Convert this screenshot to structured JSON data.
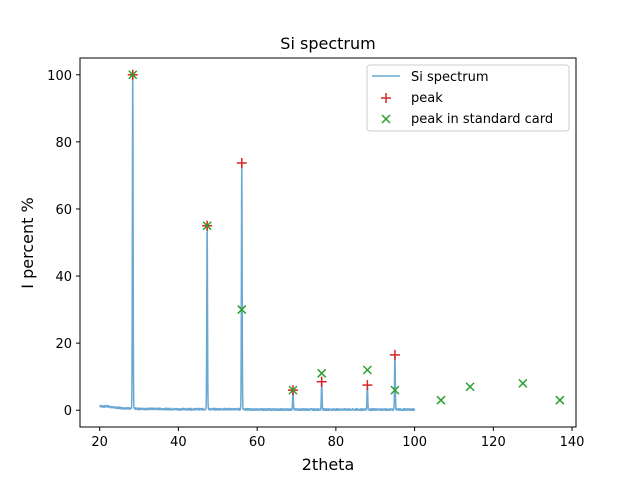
{
  "chart_data": {
    "type": "line",
    "title": "Si spectrum",
    "xlabel": "2theta",
    "ylabel": "I percent %",
    "xlim": [
      15,
      141
    ],
    "ylim": [
      -5,
      105
    ],
    "xticks": [
      20,
      40,
      60,
      80,
      100,
      120,
      140
    ],
    "yticks": [
      0,
      20,
      40,
      60,
      80,
      100
    ],
    "grid": false,
    "legend_position": "top-right",
    "series": [
      {
        "name": "Si spectrum",
        "kind": "line",
        "color": "#6aa8d4",
        "baseline": [
          [
            20,
            1.3
          ],
          [
            21,
            1.1
          ],
          [
            22,
            1.2
          ],
          [
            23,
            0.9
          ],
          [
            24,
            0.8
          ],
          [
            25,
            0.7
          ],
          [
            26,
            0.6
          ],
          [
            27,
            0.6
          ],
          [
            30,
            0.4
          ],
          [
            35,
            0.4
          ],
          [
            40,
            0.3
          ],
          [
            45,
            0.3
          ],
          [
            50,
            0.3
          ],
          [
            55,
            0.3
          ],
          [
            60,
            0.2
          ],
          [
            65,
            0.2
          ],
          [
            70,
            0.2
          ],
          [
            75,
            0.2
          ],
          [
            80,
            0.2
          ],
          [
            85,
            0.2
          ],
          [
            90,
            0.2
          ],
          [
            95,
            0.2
          ],
          [
            100,
            0.2
          ]
        ],
        "peaks": [
          [
            28.4,
            100
          ],
          [
            47.3,
            55
          ],
          [
            56.1,
            74
          ],
          [
            69.1,
            6
          ],
          [
            76.4,
            8.5
          ],
          [
            88.0,
            7.5
          ],
          [
            95.0,
            16.5
          ]
        ]
      },
      {
        "name": "peak",
        "kind": "scatter",
        "marker": "+",
        "color": "#d62728",
        "points": [
          [
            28.4,
            100
          ],
          [
            47.3,
            55
          ],
          [
            56.1,
            73.7
          ],
          [
            69.1,
            6
          ],
          [
            76.4,
            8.5
          ],
          [
            88.0,
            7.5
          ],
          [
            95.0,
            16.5
          ]
        ]
      },
      {
        "name": "peak in standard card",
        "kind": "scatter",
        "marker": "x",
        "color": "#2ca02c",
        "points": [
          [
            28.4,
            100
          ],
          [
            47.3,
            55
          ],
          [
            56.1,
            30
          ],
          [
            69.1,
            6
          ],
          [
            76.4,
            11
          ],
          [
            88.0,
            12
          ],
          [
            95.0,
            6
          ],
          [
            106.7,
            3
          ],
          [
            114.1,
            7
          ],
          [
            127.5,
            8
          ],
          [
            136.9,
            3
          ]
        ]
      }
    ]
  }
}
